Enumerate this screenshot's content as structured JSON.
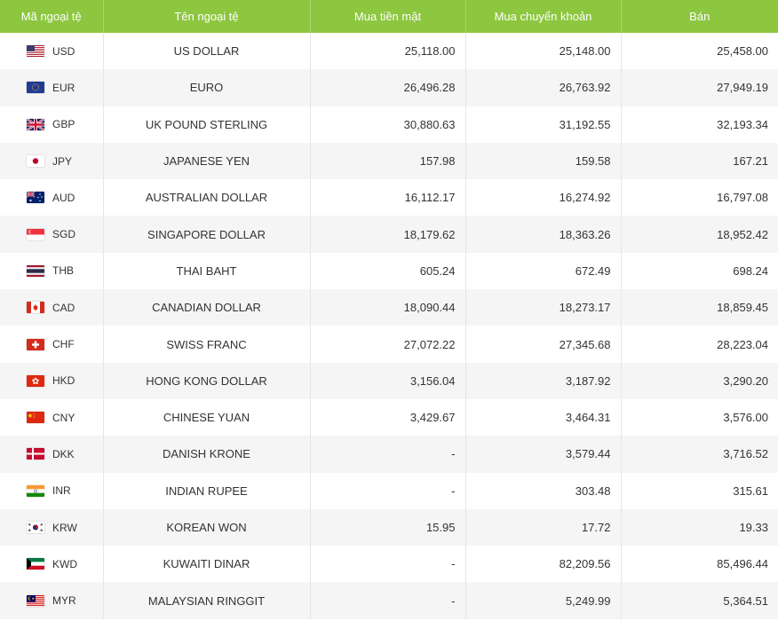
{
  "headers": {
    "code": "Mã ngoại tệ",
    "name": "Tên ngoại tệ",
    "cash_buy": "Mua tiền mặt",
    "transfer_buy": "Mua chuyển khoản",
    "sell": "Bán"
  },
  "rows": [
    {
      "flag_icon": "us-flag-icon",
      "code": "USD",
      "name": "US DOLLAR",
      "cash_buy": "25,118.00",
      "transfer_buy": "25,148.00",
      "sell": "25,458.00"
    },
    {
      "flag_icon": "eu-flag-icon",
      "code": "EUR",
      "name": "EURO",
      "cash_buy": "26,496.28",
      "transfer_buy": "26,763.92",
      "sell": "27,949.19"
    },
    {
      "flag_icon": "uk-flag-icon",
      "code": "GBP",
      "name": "UK POUND STERLING",
      "cash_buy": "30,880.63",
      "transfer_buy": "31,192.55",
      "sell": "32,193.34"
    },
    {
      "flag_icon": "japan-flag-icon",
      "code": "JPY",
      "name": "JAPANESE YEN",
      "cash_buy": "157.98",
      "transfer_buy": "159.58",
      "sell": "167.21"
    },
    {
      "flag_icon": "australia-flag-icon",
      "code": "AUD",
      "name": "AUSTRALIAN DOLLAR",
      "cash_buy": "16,112.17",
      "transfer_buy": "16,274.92",
      "sell": "16,797.08"
    },
    {
      "flag_icon": "singapore-flag-icon",
      "code": "SGD",
      "name": "SINGAPORE DOLLAR",
      "cash_buy": "18,179.62",
      "transfer_buy": "18,363.26",
      "sell": "18,952.42"
    },
    {
      "flag_icon": "thailand-flag-icon",
      "code": "THB",
      "name": "THAI BAHT",
      "cash_buy": "605.24",
      "transfer_buy": "672.49",
      "sell": "698.24"
    },
    {
      "flag_icon": "canada-flag-icon",
      "code": "CAD",
      "name": "CANADIAN DOLLAR",
      "cash_buy": "18,090.44",
      "transfer_buy": "18,273.17",
      "sell": "18,859.45"
    },
    {
      "flag_icon": "switzerland-flag-icon",
      "code": "CHF",
      "name": "SWISS FRANC",
      "cash_buy": "27,072.22",
      "transfer_buy": "27,345.68",
      "sell": "28,223.04"
    },
    {
      "flag_icon": "hongkong-flag-icon",
      "code": "HKD",
      "name": "HONG KONG DOLLAR",
      "cash_buy": "3,156.04",
      "transfer_buy": "3,187.92",
      "sell": "3,290.20"
    },
    {
      "flag_icon": "china-flag-icon",
      "code": "CNY",
      "name": "CHINESE YUAN",
      "cash_buy": "3,429.67",
      "transfer_buy": "3,464.31",
      "sell": "3,576.00"
    },
    {
      "flag_icon": "denmark-flag-icon",
      "code": "DKK",
      "name": "DANISH KRONE",
      "cash_buy": "-",
      "transfer_buy": "3,579.44",
      "sell": "3,716.52"
    },
    {
      "flag_icon": "india-flag-icon",
      "code": "INR",
      "name": "INDIAN RUPEE",
      "cash_buy": "-",
      "transfer_buy": "303.48",
      "sell": "315.61"
    },
    {
      "flag_icon": "korea-flag-icon",
      "code": "KRW",
      "name": "KOREAN WON",
      "cash_buy": "15.95",
      "transfer_buy": "17.72",
      "sell": "19.33"
    },
    {
      "flag_icon": "kuwait-flag-icon",
      "code": "KWD",
      "name": "KUWAITI DINAR",
      "cash_buy": "-",
      "transfer_buy": "82,209.56",
      "sell": "85,496.44"
    },
    {
      "flag_icon": "malaysia-flag-icon",
      "code": "MYR",
      "name": "MALAYSIAN RINGGIT",
      "cash_buy": "-",
      "transfer_buy": "5,249.99",
      "sell": "5,364.51"
    }
  ],
  "colors": {
    "header_bg": "#8dc63f",
    "header_text": "#ffffff",
    "row_alt_bg": "#f5f5f5",
    "text": "#333333"
  }
}
